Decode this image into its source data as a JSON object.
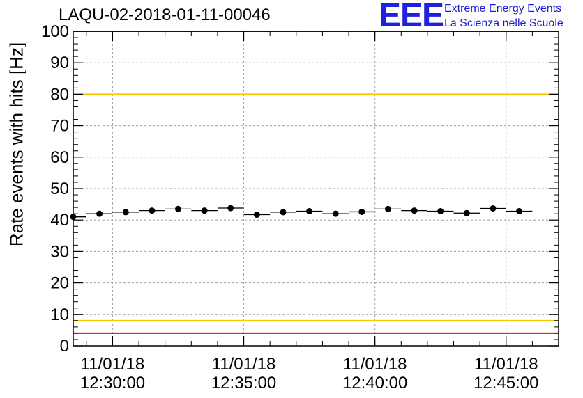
{
  "chart_data": {
    "type": "scatter",
    "title": "LAQU-02-2018-01-11-00046",
    "ylabel": "Rate events with hits [Hz]",
    "xlabel": "",
    "ylim": [
      0,
      100
    ],
    "yticks": [
      0,
      10,
      20,
      30,
      40,
      50,
      60,
      70,
      80,
      90,
      100
    ],
    "x_tick_labels": [
      {
        "date": "11/01/18",
        "time": "12:30:00"
      },
      {
        "date": "11/01/18",
        "time": "12:35:00"
      },
      {
        "date": "11/01/18",
        "time": "12:40:00"
      },
      {
        "date": "11/01/18",
        "time": "12:45:00"
      }
    ],
    "xlim": [
      "12:28:30",
      "12:47:00"
    ],
    "grid": true,
    "points": [
      {
        "x": "12:28:30",
        "y": 41.0
      },
      {
        "x": "12:29:30",
        "y": 42.0
      },
      {
        "x": "12:30:30",
        "y": 42.5
      },
      {
        "x": "12:31:30",
        "y": 43.0
      },
      {
        "x": "12:32:30",
        "y": 43.5
      },
      {
        "x": "12:33:30",
        "y": 43.0
      },
      {
        "x": "12:34:30",
        "y": 43.8
      },
      {
        "x": "12:35:30",
        "y": 41.7
      },
      {
        "x": "12:36:30",
        "y": 42.5
      },
      {
        "x": "12:37:30",
        "y": 42.8
      },
      {
        "x": "12:38:30",
        "y": 42.0
      },
      {
        "x": "12:39:30",
        "y": 42.6
      },
      {
        "x": "12:40:30",
        "y": 43.5
      },
      {
        "x": "12:41:30",
        "y": 43.0
      },
      {
        "x": "12:42:30",
        "y": 42.8
      },
      {
        "x": "12:43:30",
        "y": 42.2
      },
      {
        "x": "12:44:30",
        "y": 43.7
      },
      {
        "x": "12:45:30",
        "y": 42.8
      }
    ],
    "reference_lines": [
      {
        "y": 100,
        "color": "#ff0000"
      },
      {
        "y": 80,
        "color": "#f2c800"
      },
      {
        "y": 8,
        "color": "#f2c800"
      },
      {
        "y": 4,
        "color": "#ff0000"
      }
    ],
    "marker_color": "#000000"
  },
  "logo": {
    "text": "EEE",
    "line1": "Extreme Energy Events",
    "line2": "La Scienza nelle Scuole",
    "color": "#2020e0"
  }
}
